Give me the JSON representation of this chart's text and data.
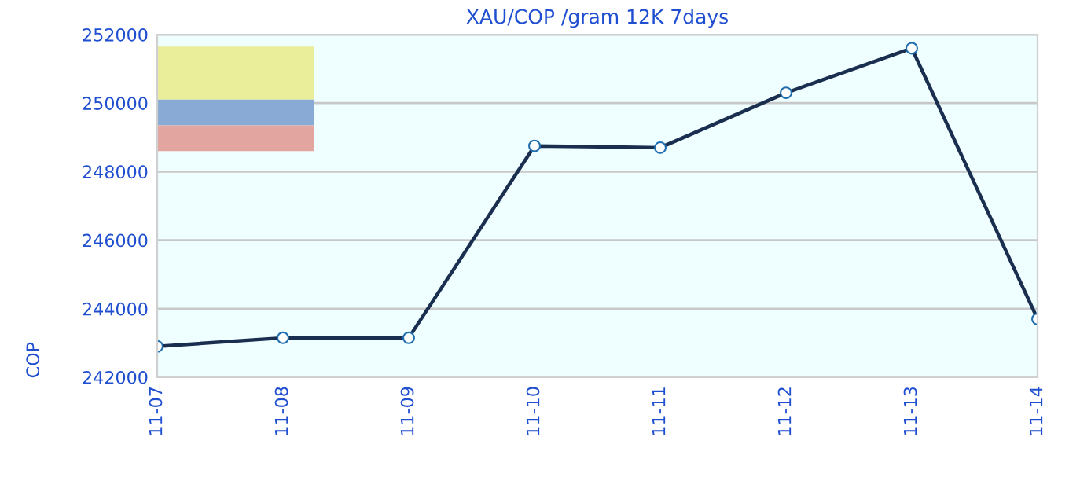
{
  "chart_data": {
    "type": "line",
    "title": "XAU/COP /gram 12K 7days",
    "ylabel": "COP",
    "categories": [
      "11-07",
      "11-08",
      "11-09",
      "11-10",
      "11-11",
      "11-12",
      "11-13",
      "11-14"
    ],
    "series": [
      {
        "color": "#1a2e50",
        "values": [
          242900,
          243150,
          243150,
          248750,
          248700,
          250300,
          251600,
          243700
        ]
      }
    ],
    "ylim": [
      242000,
      252000
    ],
    "yticks": [
      242000,
      244000,
      246000,
      248000,
      250000,
      252000
    ],
    "grid": "y",
    "marker": "circle",
    "line_style": "solid",
    "legend": false
  }
}
